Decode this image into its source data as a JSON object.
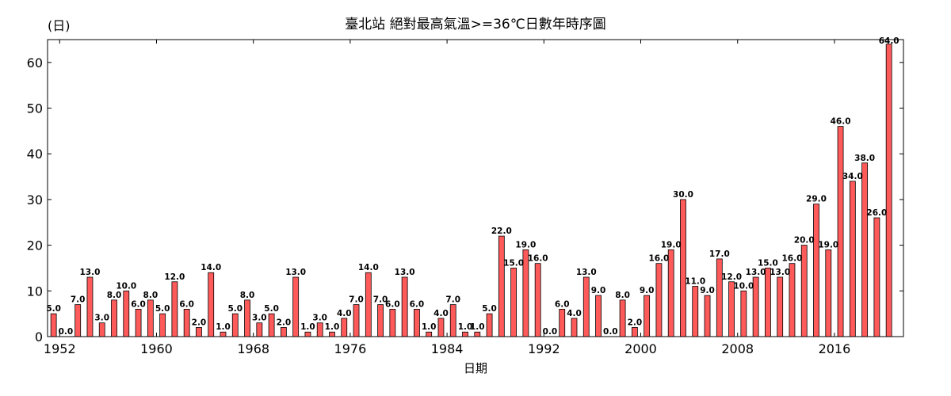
{
  "chart_data": {
    "type": "bar",
    "title": "臺北站 絕對最高氣溫>=36℃日數年時序圖",
    "unit_label": "(日)",
    "xlabel": "日期",
    "ylabel": "",
    "ylim": [
      0,
      65
    ],
    "xlim": [
      1951,
      2021.7
    ],
    "y_ticks": [
      0,
      10,
      20,
      30,
      40,
      50,
      60
    ],
    "x_ticks": [
      1952,
      1960,
      1968,
      1976,
      1984,
      1992,
      2000,
      2008,
      2016
    ],
    "color": "#ff5a5a",
    "series": [
      {
        "year": 1951.5,
        "value": 5,
        "label": "5.0"
      },
      {
        "year": 1952.5,
        "value": 0,
        "label": "0.0"
      },
      {
        "year": 1953.5,
        "value": 7,
        "label": "7.0"
      },
      {
        "year": 1954.5,
        "value": 13,
        "label": "13.0"
      },
      {
        "year": 1955.5,
        "value": 3,
        "label": "3.0"
      },
      {
        "year": 1956.5,
        "value": 8,
        "label": "8.0"
      },
      {
        "year": 1957.5,
        "value": 10,
        "label": "10.0"
      },
      {
        "year": 1958.5,
        "value": 6,
        "label": "6.0"
      },
      {
        "year": 1959.5,
        "value": 8,
        "label": "8.0"
      },
      {
        "year": 1960.5,
        "value": 5,
        "label": "5.0"
      },
      {
        "year": 1961.5,
        "value": 12,
        "label": "12.0"
      },
      {
        "year": 1962.5,
        "value": 6,
        "label": "6.0"
      },
      {
        "year": 1963.5,
        "value": 2,
        "label": "2.0"
      },
      {
        "year": 1964.5,
        "value": 14,
        "label": "14.0"
      },
      {
        "year": 1965.5,
        "value": 1,
        "label": "1.0"
      },
      {
        "year": 1966.5,
        "value": 5,
        "label": "5.0"
      },
      {
        "year": 1967.5,
        "value": 8,
        "label": "8.0"
      },
      {
        "year": 1968.5,
        "value": 3,
        "label": "3.0"
      },
      {
        "year": 1969.5,
        "value": 5,
        "label": "5.0"
      },
      {
        "year": 1970.5,
        "value": 2,
        "label": "2.0"
      },
      {
        "year": 1971.5,
        "value": 13,
        "label": "13.0"
      },
      {
        "year": 1972.5,
        "value": 1,
        "label": "1.0"
      },
      {
        "year": 1973.5,
        "value": 3,
        "label": "3.0"
      },
      {
        "year": 1974.5,
        "value": 1,
        "label": "1.0"
      },
      {
        "year": 1975.5,
        "value": 4,
        "label": "4.0"
      },
      {
        "year": 1976.5,
        "value": 7,
        "label": "7.0"
      },
      {
        "year": 1977.5,
        "value": 14,
        "label": "14.0"
      },
      {
        "year": 1978.5,
        "value": 7,
        "label": "7.0"
      },
      {
        "year": 1979.5,
        "value": 6,
        "label": "6.0"
      },
      {
        "year": 1980.5,
        "value": 13,
        "label": "13.0"
      },
      {
        "year": 1981.5,
        "value": 6,
        "label": "6.0"
      },
      {
        "year": 1982.5,
        "value": 1,
        "label": "1.0"
      },
      {
        "year": 1983.5,
        "value": 4,
        "label": "4.0"
      },
      {
        "year": 1984.5,
        "value": 7,
        "label": "7.0"
      },
      {
        "year": 1985.5,
        "value": 1,
        "label": "1.0"
      },
      {
        "year": 1986.5,
        "value": 1,
        "label": "1.0"
      },
      {
        "year": 1987.5,
        "value": 5,
        "label": "5.0"
      },
      {
        "year": 1988.5,
        "value": 22,
        "label": "22.0"
      },
      {
        "year": 1989.5,
        "value": 15,
        "label": "15.0"
      },
      {
        "year": 1990.5,
        "value": 19,
        "label": "19.0"
      },
      {
        "year": 1991.5,
        "value": 16,
        "label": "16.0"
      },
      {
        "year": 1992.5,
        "value": 0,
        "label": "0.0"
      },
      {
        "year": 1993.5,
        "value": 6,
        "label": "6.0"
      },
      {
        "year": 1994.5,
        "value": 4,
        "label": "4.0"
      },
      {
        "year": 1995.5,
        "value": 13,
        "label": "13.0"
      },
      {
        "year": 1996.5,
        "value": 9,
        "label": "9.0"
      },
      {
        "year": 1997.5,
        "value": 0,
        "label": "0.0"
      },
      {
        "year": 1998.5,
        "value": 8,
        "label": "8.0"
      },
      {
        "year": 1999.5,
        "value": 2,
        "label": "2.0"
      },
      {
        "year": 2000.5,
        "value": 9,
        "label": "9.0"
      },
      {
        "year": 2001.5,
        "value": 16,
        "label": "16.0"
      },
      {
        "year": 2002.5,
        "value": 19,
        "label": "19.0"
      },
      {
        "year": 2003.5,
        "value": 30,
        "label": "30.0"
      },
      {
        "year": 2004.5,
        "value": 11,
        "label": "11.0"
      },
      {
        "year": 2005.5,
        "value": 9,
        "label": "9.0"
      },
      {
        "year": 2006.5,
        "value": 17,
        "label": "17.0"
      },
      {
        "year": 2007.5,
        "value": 12,
        "label": "12.0"
      },
      {
        "year": 2008.5,
        "value": 10,
        "label": "10.0"
      },
      {
        "year": 2009.5,
        "value": 13,
        "label": "13.0"
      },
      {
        "year": 2010.5,
        "value": 15,
        "label": "15.0"
      },
      {
        "year": 2011.5,
        "value": 13,
        "label": "13.0"
      },
      {
        "year": 2012.5,
        "value": 16,
        "label": "16.0"
      },
      {
        "year": 2013.5,
        "value": 20,
        "label": "20.0"
      },
      {
        "year": 2014.5,
        "value": 29,
        "label": "29.0"
      },
      {
        "year": 2015.5,
        "value": 19,
        "label": "19.0"
      },
      {
        "year": 2016.5,
        "value": 46,
        "label": "46.0"
      },
      {
        "year": 2017.5,
        "value": 34,
        "label": "34.0"
      },
      {
        "year": 2018.5,
        "value": 38,
        "label": "38.0"
      },
      {
        "year": 2019.5,
        "value": 26,
        "label": "26.0"
      },
      {
        "year": 2020.5,
        "value": 64,
        "label": "64.0"
      }
    ]
  }
}
